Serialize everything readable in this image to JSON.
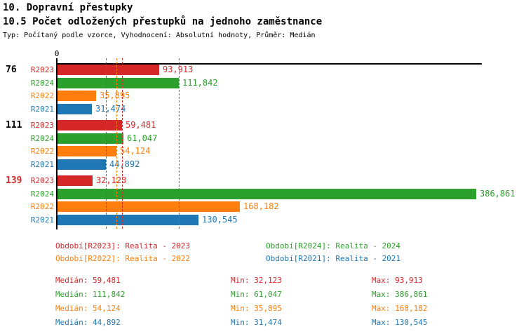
{
  "header": {
    "title": "10. Dopravní přestupky",
    "subtitle": "10.5 Počet odložených přestupků na jednoho zaměstnance",
    "meta": "Typ: Počítaný podle vzorce, Vyhodnocení: Absolutní hodnoty, Průměr: Medián"
  },
  "colors": {
    "r2023": "#d62728",
    "r2024": "#2ca02c",
    "r2022": "#ff7f0e",
    "r2021": "#1f77b4",
    "axis": "#000000",
    "group_label_default": "#000000",
    "group_label_highlight": "#d62728"
  },
  "chart_data": {
    "type": "bar",
    "orientation": "horizontal",
    "x_axis": {
      "zero_label": "0"
    },
    "series_order": [
      "R2023",
      "R2024",
      "R2022",
      "R2021"
    ],
    "groups": [
      {
        "label": "76",
        "label_style": "default",
        "bars": [
          {
            "series": "R2023",
            "value": 93913,
            "display": "93,913"
          },
          {
            "series": "R2024",
            "value": 111842,
            "display": "111,842"
          },
          {
            "series": "R2022",
            "value": 35895,
            "display": "35,895"
          },
          {
            "series": "R2021",
            "value": 31474,
            "display": "31,474"
          }
        ]
      },
      {
        "label": "111",
        "label_style": "default",
        "bars": [
          {
            "series": "R2023",
            "value": 59481,
            "display": "59,481"
          },
          {
            "series": "R2024",
            "value": 61047,
            "display": "61,047"
          },
          {
            "series": "R2022",
            "value": 54124,
            "display": "54,124"
          },
          {
            "series": "R2021",
            "value": 44892,
            "display": "44,892"
          }
        ]
      },
      {
        "label": "139",
        "label_style": "highlight",
        "bars": [
          {
            "series": "R2023",
            "value": 32123,
            "display": "32,123"
          },
          {
            "series": "R2024",
            "value": 386861,
            "display": "386,861"
          },
          {
            "series": "R2022",
            "value": 168182,
            "display": "168,182"
          },
          {
            "series": "R2021",
            "value": 130545,
            "display": "130,545"
          }
        ]
      }
    ],
    "median_lines": [
      {
        "series": "R2021",
        "value": 44892
      },
      {
        "series": "R2022",
        "value": 54124
      },
      {
        "series": "R2023",
        "value": 59481
      },
      {
        "series": "R2024",
        "value": 111842
      }
    ]
  },
  "legend": {
    "items": [
      {
        "series": "R2023",
        "text": "Období[R2023]: Realita - 2023"
      },
      {
        "series": "R2024",
        "text": "Období[R2024]: Realita - 2024"
      },
      {
        "series": "R2022",
        "text": "Období[R2022]: Realita - 2022"
      },
      {
        "series": "R2021",
        "text": "Období[R2021]: Realita - 2021"
      }
    ]
  },
  "stats": {
    "rows": [
      {
        "series": "R2023",
        "median": "Medián: 59,481",
        "min": "Min: 32,123",
        "max": "Max: 93,913"
      },
      {
        "series": "R2024",
        "median": "Medián: 111,842",
        "min": "Min: 61,047",
        "max": "Max: 386,861"
      },
      {
        "series": "R2022",
        "median": "Medián: 54,124",
        "min": "Min: 35,895",
        "max": "Max: 168,182"
      },
      {
        "series": "R2021",
        "median": "Medián: 44,892",
        "min": "Min: 31,474",
        "max": "Max: 130,545"
      }
    ]
  }
}
